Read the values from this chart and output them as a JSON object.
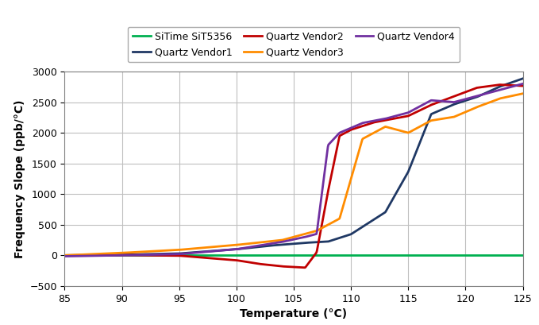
{
  "title": "",
  "xlabel": "Temperature (°C)",
  "ylabel": "Frequency Slope (ppb/°C)",
  "xlim": [
    85,
    125
  ],
  "ylim": [
    -500,
    3000
  ],
  "xticks": [
    85,
    90,
    95,
    100,
    105,
    110,
    115,
    120,
    125
  ],
  "yticks": [
    -500,
    0,
    500,
    1000,
    1500,
    2000,
    2500,
    3000
  ],
  "background_color": "#ffffff",
  "plot_bg_color": "#ffffff",
  "grid_color": "#bfbfbf",
  "series": {
    "SiTime SiT5356": {
      "color": "#00b050",
      "linewidth": 2.0
    },
    "Quartz Vendor1": {
      "color": "#1f3864",
      "linewidth": 2.0
    },
    "Quartz Vendor2": {
      "color": "#c00000",
      "linewidth": 2.0
    },
    "Quartz Vendor3": {
      "color": "#ff8c00",
      "linewidth": 2.0
    },
    "Quartz Vendor4": {
      "color": "#7030a0",
      "linewidth": 2.0
    }
  },
  "legend_ncol": 3,
  "legend_fontsize": 9,
  "axis_label_fontsize": 10,
  "tick_fontsize": 9
}
